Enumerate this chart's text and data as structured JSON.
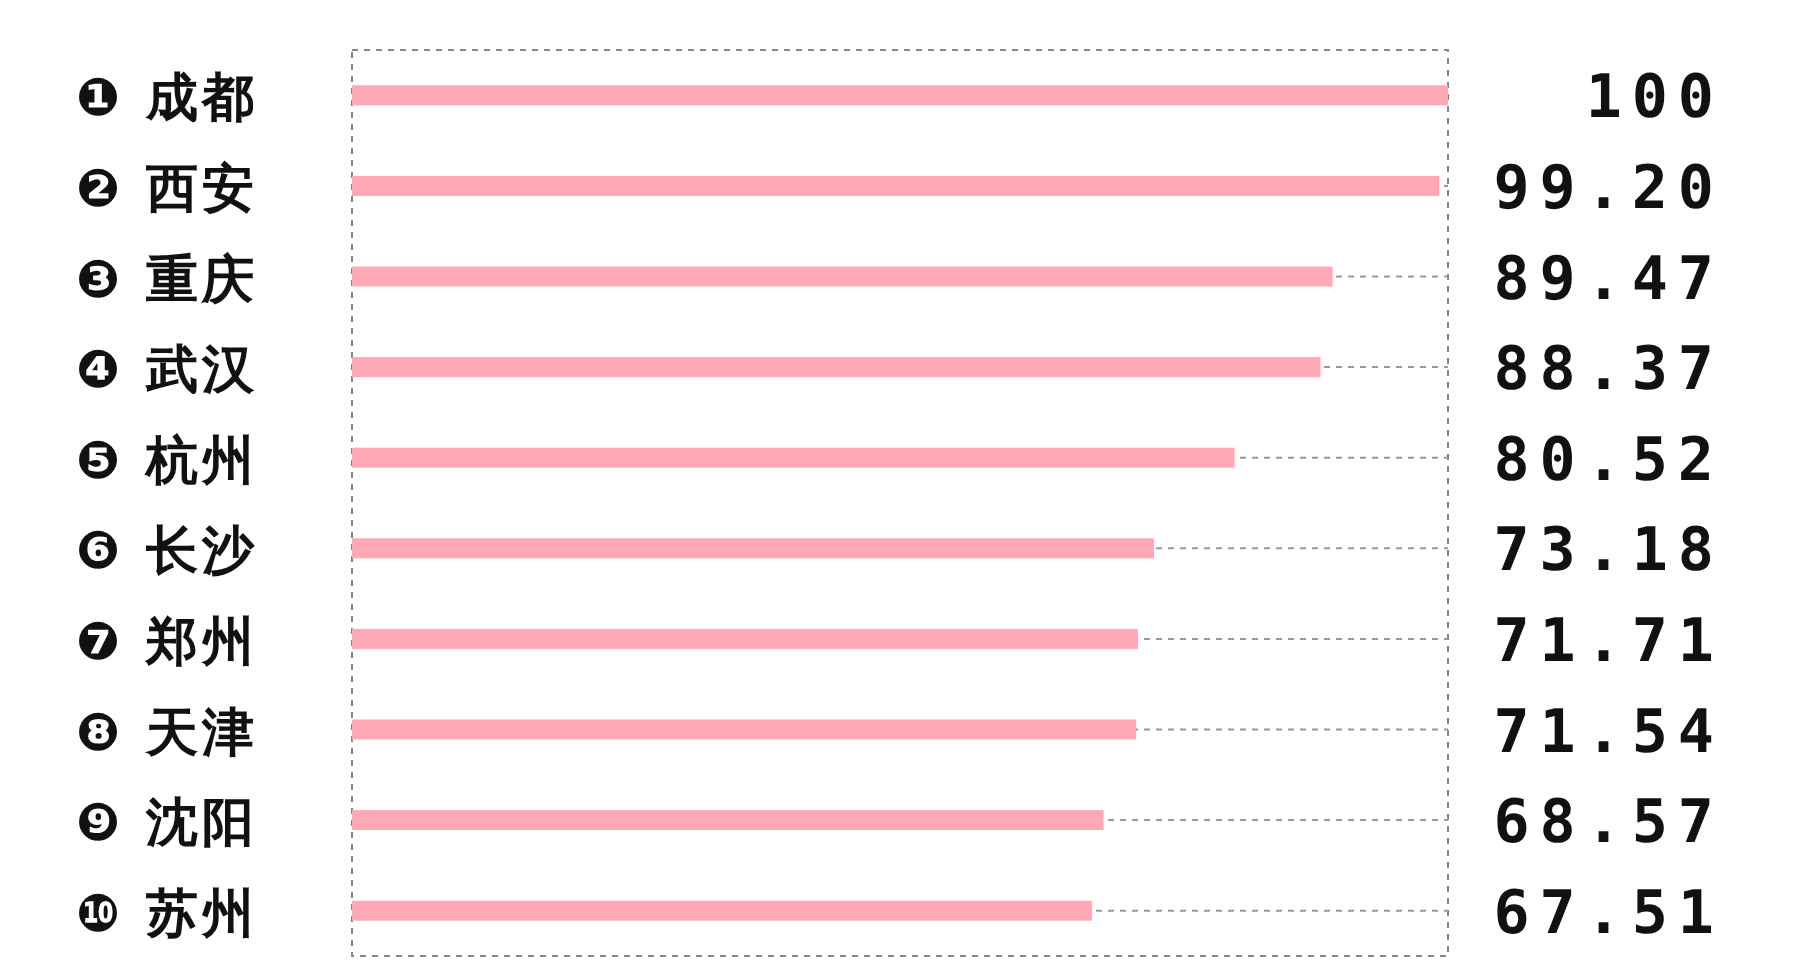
{
  "chart_data": {
    "type": "bar",
    "orientation": "horizontal",
    "categories": [
      "❶ 成都",
      "❷ 西安",
      "❸ 重庆",
      "❹ 武汉",
      "❺ 杭州",
      "❻ 长沙",
      "❼ 郑州",
      "❽ 天津",
      "❾ 沈阳",
      "❿ 苏州"
    ],
    "values": [
      100,
      99.2,
      89.47,
      88.37,
      80.52,
      73.18,
      71.71,
      71.54,
      68.57,
      67.51
    ],
    "value_labels": [
      "100",
      "99.20",
      "89.47",
      "88.37",
      "80.52",
      "73.18",
      "71.71",
      "71.54",
      "68.57",
      "67.51"
    ],
    "color": "#ffa9b6",
    "xlim": [
      0,
      100
    ],
    "grid": "y"
  }
}
